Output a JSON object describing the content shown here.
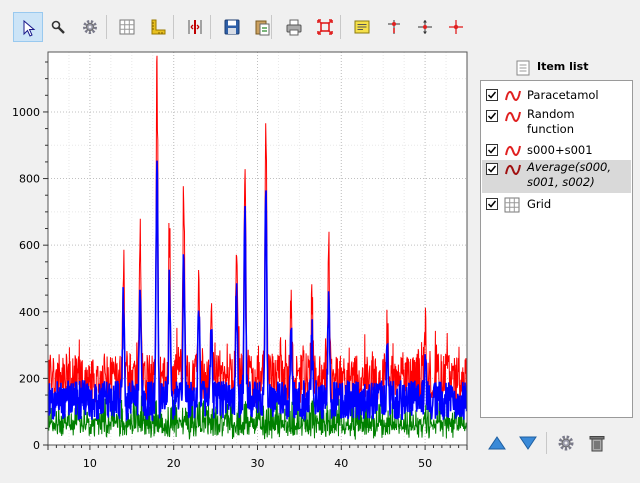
{
  "toolbar": {
    "tools": [
      {
        "icon": "select-arrow-icon"
      },
      {
        "icon": "zoom-magnifier-icon"
      },
      {
        "icon": "gear-icon"
      },
      {
        "icon": "grid-icon"
      },
      {
        "icon": "ruler-icon"
      },
      {
        "icon": "cross-section-icon"
      },
      {
        "icon": "save-icon"
      },
      {
        "icon": "copy-icon"
      },
      {
        "icon": "print-icon"
      },
      {
        "icon": "fit-to-view-icon"
      },
      {
        "icon": "annotation-icon"
      },
      {
        "icon": "vertical-cursor-icon"
      },
      {
        "icon": "horizontal-cursor-icon"
      },
      {
        "icon": "crosshair-icon"
      }
    ]
  },
  "item_panel": {
    "title": "Item list",
    "items": [
      {
        "label_lines": [
          "Paracetamol"
        ],
        "checked": true,
        "icon": "curve-icon",
        "selected": false
      },
      {
        "label_lines": [
          "Random",
          "function"
        ],
        "checked": true,
        "icon": "curve-icon",
        "selected": false
      },
      {
        "label_lines": [
          "s000+s001"
        ],
        "checked": true,
        "icon": "curve-icon",
        "selected": false
      },
      {
        "label_lines": [
          "Average(s000,",
          "s001, s002)"
        ],
        "checked": true,
        "icon": "curve-icon",
        "selected": true
      },
      {
        "label_lines": [
          "Grid"
        ],
        "checked": true,
        "icon": "grid-icon",
        "selected": false
      }
    ]
  },
  "bottom_buttons": [
    {
      "icon": "move-up-icon"
    },
    {
      "icon": "move-down-icon"
    },
    {
      "icon": "parameters-gear-icon"
    },
    {
      "icon": "delete-trash-icon"
    }
  ],
  "chart_data": {
    "type": "line",
    "title": "",
    "xlabel": "",
    "ylabel": "",
    "xlim": [
      5,
      55
    ],
    "ylim": [
      0,
      1180
    ],
    "x_ticks": [
      10,
      20,
      30,
      40,
      50
    ],
    "y_ticks": [
      0,
      200,
      400,
      600,
      800,
      1000
    ],
    "grid": true,
    "legend": "none",
    "colors": {
      "red": "#ff0000",
      "blue": "#0000ff",
      "green": "#008000",
      "grid": "#c0c0c0"
    },
    "peaks": [
      {
        "x": 14.0,
        "y": 600
      },
      {
        "x": 16.0,
        "y": 680
      },
      {
        "x": 18.0,
        "y": 1180
      },
      {
        "x": 19.5,
        "y": 680
      },
      {
        "x": 21.2,
        "y": 800
      },
      {
        "x": 23.0,
        "y": 540
      },
      {
        "x": 24.5,
        "y": 480
      },
      {
        "x": 27.5,
        "y": 640
      },
      {
        "x": 28.5,
        "y": 900
      },
      {
        "x": 31.0,
        "y": 1000
      },
      {
        "x": 34.0,
        "y": 480
      },
      {
        "x": 36.5,
        "y": 470
      },
      {
        "x": 38.5,
        "y": 640
      },
      {
        "x": 45.5,
        "y": 410
      },
      {
        "x": 50.0,
        "y": 400
      }
    ]
  }
}
